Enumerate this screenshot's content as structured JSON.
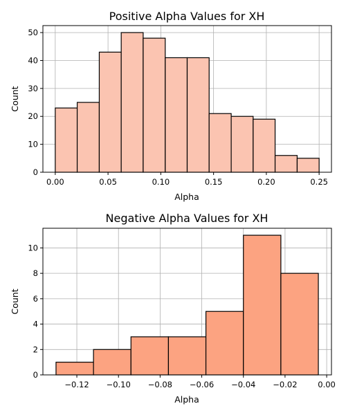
{
  "chart_data": [
    {
      "type": "bar",
      "title": "Positive Alpha Values for XH",
      "xlabel": "Alpha",
      "ylabel": "Count",
      "xlim": [
        -0.0117,
        0.2617
      ],
      "ylim": [
        0,
        52.5
      ],
      "xticks": [
        0.0,
        0.05,
        0.1,
        0.15,
        0.2,
        0.25
      ],
      "xtick_labels": [
        "0.00",
        "0.05",
        "0.10",
        "0.15",
        "0.20",
        "0.25"
      ],
      "yticks": [
        0,
        10,
        20,
        30,
        40,
        50
      ],
      "ytick_labels": [
        "0",
        "10",
        "20",
        "30",
        "40",
        "50"
      ],
      "grid": true,
      "bar_color": "#fbc4b1",
      "edge_color": "#000000",
      "bins": [
        {
          "x0": 0.0,
          "x1": 0.0208,
          "count": 23
        },
        {
          "x0": 0.0208,
          "x1": 0.0417,
          "count": 25
        },
        {
          "x0": 0.0417,
          "x1": 0.0625,
          "count": 43
        },
        {
          "x0": 0.0625,
          "x1": 0.0833,
          "count": 50
        },
        {
          "x0": 0.0833,
          "x1": 0.1042,
          "count": 48
        },
        {
          "x0": 0.1042,
          "x1": 0.125,
          "count": 41
        },
        {
          "x0": 0.125,
          "x1": 0.1458,
          "count": 41
        },
        {
          "x0": 0.1458,
          "x1": 0.1667,
          "count": 21
        },
        {
          "x0": 0.1667,
          "x1": 0.1875,
          "count": 20
        },
        {
          "x0": 0.1875,
          "x1": 0.2083,
          "count": 19
        },
        {
          "x0": 0.2083,
          "x1": 0.2292,
          "count": 6
        },
        {
          "x0": 0.2292,
          "x1": 0.25,
          "count": 5
        }
      ]
    },
    {
      "type": "bar",
      "title": "Negative Alpha Values for XH",
      "xlabel": "Alpha",
      "ylabel": "Count",
      "xlim": [
        -0.1363,
        0.0023
      ],
      "ylim": [
        0,
        11.55
      ],
      "xticks": [
        -0.12,
        -0.1,
        -0.08,
        -0.06,
        -0.04,
        -0.02,
        0.0
      ],
      "xtick_labels": [
        "−0.12",
        "−0.10",
        "−0.08",
        "−0.06",
        "−0.04",
        "−0.02",
        "0.00"
      ],
      "yticks": [
        0,
        2,
        4,
        6,
        8,
        10
      ],
      "ytick_labels": [
        "0",
        "2",
        "4",
        "6",
        "8",
        "10"
      ],
      "grid": true,
      "bar_color": "#fca381",
      "edge_color": "#000000",
      "bins": [
        {
          "x0": -0.13,
          "x1": -0.112,
          "count": 1
        },
        {
          "x0": -0.112,
          "x1": -0.094,
          "count": 2
        },
        {
          "x0": -0.094,
          "x1": -0.076,
          "count": 3
        },
        {
          "x0": -0.076,
          "x1": -0.058,
          "count": 3
        },
        {
          "x0": -0.058,
          "x1": -0.04,
          "count": 5
        },
        {
          "x0": -0.04,
          "x1": -0.022,
          "count": 11
        },
        {
          "x0": -0.022,
          "x1": -0.004,
          "count": 8
        }
      ]
    }
  ]
}
